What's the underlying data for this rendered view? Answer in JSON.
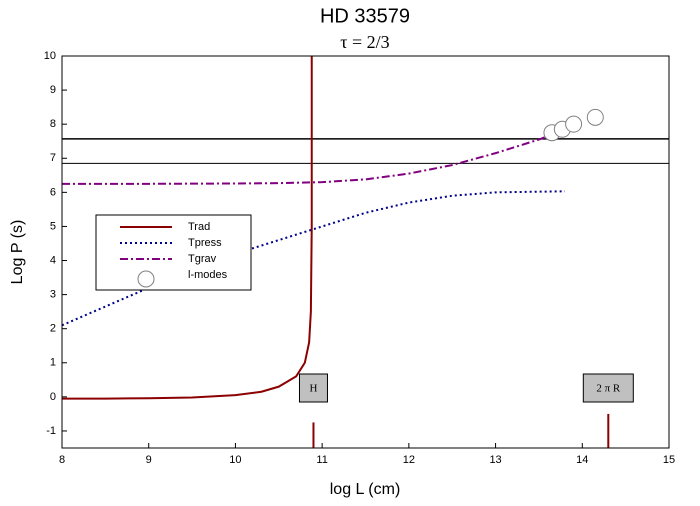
{
  "chart_data": {
    "type": "line",
    "title": "HD 33579",
    "subtitle": "τ = 2/3",
    "xlabel": "log L (cm)",
    "ylabel": "Log P (s)",
    "xlim": [
      8,
      15
    ],
    "xticks": [
      8,
      9,
      10,
      11,
      12,
      13,
      14,
      15
    ],
    "ylim": [
      -1.5,
      10
    ],
    "yticks": [
      -1,
      0,
      1,
      2,
      3,
      4,
      5,
      6,
      7,
      8,
      9,
      10
    ],
    "series": [
      {
        "name": "Trad",
        "color": "#8b0000",
        "dash": "solid",
        "x": [
          8,
          8.5,
          9,
          9.5,
          10,
          10.3,
          10.5,
          10.7,
          10.8,
          10.85,
          10.87,
          10.88,
          10.88
        ],
        "values": [
          -0.05,
          -0.05,
          -0.04,
          -0.02,
          0.05,
          0.15,
          0.3,
          0.6,
          1.0,
          1.6,
          2.5,
          5,
          10
        ]
      },
      {
        "name": "Tpress",
        "color": "#00008b",
        "dash": "dotted",
        "x": [
          8,
          8.5,
          9,
          9.5,
          10,
          10.5,
          11,
          11.5,
          12,
          12.5,
          13,
          13.5,
          13.8
        ],
        "values": [
          2.1,
          2.65,
          3.2,
          3.7,
          4.2,
          4.6,
          5.0,
          5.4,
          5.7,
          5.9,
          6.0,
          6.02,
          6.03
        ]
      },
      {
        "name": "Tgrav",
        "color": "#800080",
        "dash": "dashdot",
        "x": [
          8,
          9,
          10,
          10.5,
          11,
          11.5,
          12,
          12.5,
          13,
          13.5,
          13.65
        ],
        "values": [
          6.25,
          6.25,
          6.26,
          6.27,
          6.3,
          6.38,
          6.55,
          6.8,
          7.15,
          7.55,
          7.7
        ]
      },
      {
        "name": "l-modes",
        "color": "#808080",
        "dash": "marker",
        "x": [
          13.65,
          13.77,
          13.9,
          14.15
        ],
        "values": [
          7.75,
          7.85,
          8.0,
          8.2
        ]
      }
    ],
    "hlines": [
      7.57,
      6.85
    ],
    "vlines": [
      {
        "x": 10.9,
        "top": -0.75
      },
      {
        "x": 14.3,
        "top": -0.5
      }
    ],
    "annotations": [
      {
        "text": "H",
        "x": 10.9
      },
      {
        "text": "2 π R",
        "x": 14.3
      }
    ]
  }
}
